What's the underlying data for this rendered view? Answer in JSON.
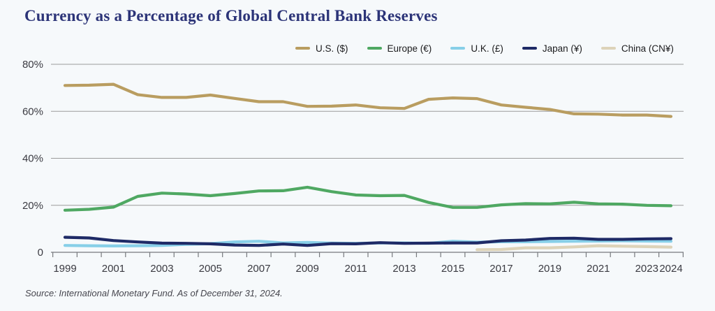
{
  "title": "Currency as a Percentage of Global Central Bank Reserves",
  "source": "Source: International Monetary Fund. As of December 31, 2024.",
  "colors": {
    "background": "#f6f9fb",
    "title_text": "#2c3478",
    "gridline": "#9b9b9b",
    "axis": "#76797d",
    "tick_label": "#3b3b42",
    "legend_text": "#1c1c1e",
    "source_text": "#46464e"
  },
  "chart_data": {
    "type": "line",
    "title": "Currency as a Percentage of Global Central Bank Reserves",
    "xlabel": "",
    "ylabel": "",
    "x": [
      1999,
      2000,
      2001,
      2002,
      2003,
      2004,
      2005,
      2006,
      2007,
      2008,
      2009,
      2010,
      2011,
      2012,
      2013,
      2014,
      2015,
      2016,
      2017,
      2018,
      2019,
      2020,
      2021,
      2022,
      2023,
      2024
    ],
    "x_tick_labels": [
      "1999",
      "2001",
      "2003",
      "2005",
      "2007",
      "2009",
      "2011",
      "2013",
      "2015",
      "2017",
      "2019",
      "2021",
      "2023",
      "2024"
    ],
    "x_tick_years": [
      1999,
      2001,
      2003,
      2005,
      2007,
      2009,
      2011,
      2013,
      2015,
      2017,
      2019,
      2021,
      2023,
      2024
    ],
    "y_ticks": [
      0,
      20,
      40,
      60,
      80
    ],
    "y_tick_labels": [
      "0",
      "20%",
      "40%",
      "60%",
      "80%"
    ],
    "ylim": [
      0,
      80
    ],
    "grid": "horizontal",
    "legend_position": "top",
    "series": [
      {
        "name": "U.S. ($)",
        "color": "#b99d60",
        "values": [
          71.0,
          71.1,
          71.5,
          67.1,
          65.9,
          65.9,
          66.9,
          65.5,
          64.1,
          64.1,
          62.1,
          62.2,
          62.7,
          61.5,
          61.2,
          65.1,
          65.7,
          65.4,
          62.7,
          61.7,
          60.8,
          58.9,
          58.8,
          58.4,
          58.4,
          57.8
        ]
      },
      {
        "name": "Europe (€)",
        "color": "#4fa862",
        "values": [
          17.9,
          18.3,
          19.2,
          23.8,
          25.2,
          24.8,
          24.1,
          25.0,
          26.1,
          26.2,
          27.7,
          25.8,
          24.4,
          24.1,
          24.2,
          21.2,
          19.1,
          19.1,
          20.2,
          20.7,
          20.6,
          21.3,
          20.6,
          20.5,
          20.0,
          19.8
        ]
      },
      {
        "name": "U.K. (£)",
        "color": "#87cfe8",
        "values": [
          2.9,
          2.8,
          2.7,
          2.8,
          2.9,
          3.4,
          3.7,
          4.4,
          4.7,
          4.0,
          4.2,
          3.9,
          3.8,
          4.0,
          4.0,
          3.8,
          4.7,
          4.3,
          4.5,
          4.5,
          4.6,
          4.7,
          4.8,
          4.9,
          4.8,
          4.7
        ]
      },
      {
        "name": "Japan (¥)",
        "color": "#1e2a66",
        "values": [
          6.4,
          6.1,
          5.0,
          4.4,
          3.9,
          3.8,
          3.6,
          3.1,
          2.9,
          3.5,
          2.9,
          3.7,
          3.6,
          4.1,
          3.8,
          3.9,
          4.0,
          4.0,
          4.9,
          5.2,
          5.9,
          6.0,
          5.5,
          5.5,
          5.7,
          5.8
        ]
      },
      {
        "name": "China (CN¥)",
        "color": "#ddd3b9",
        "values": [
          null,
          null,
          null,
          null,
          null,
          null,
          null,
          null,
          null,
          null,
          null,
          null,
          null,
          null,
          null,
          null,
          null,
          1.1,
          1.2,
          1.9,
          1.9,
          2.3,
          2.8,
          2.6,
          2.4,
          2.2
        ]
      }
    ]
  }
}
